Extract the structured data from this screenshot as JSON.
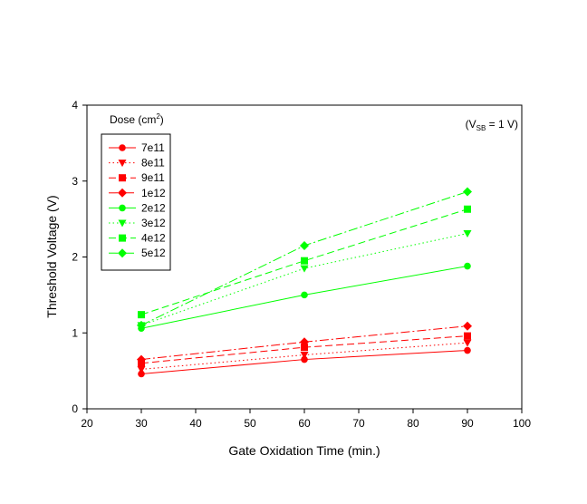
{
  "chart_data": {
    "type": "line",
    "xlabel": "Gate Oxidation Time (min.)",
    "ylabel": "Threshold Voltage (V)",
    "xlim": [
      20,
      100
    ],
    "ylim": [
      0,
      4
    ],
    "xticks": [
      20,
      30,
      40,
      50,
      60,
      70,
      80,
      90,
      100
    ],
    "yticks": [
      0,
      1,
      2,
      3,
      4
    ],
    "grid": false,
    "legend": {
      "title": "Dose (cm",
      "title_sup": "2",
      "title_end": ")",
      "placement": "top-left"
    },
    "annotation": {
      "prefix": "(V",
      "sub": "SB",
      "suffix": " = 1 V)"
    },
    "x": [
      30,
      60,
      90
    ],
    "series": [
      {
        "name": "7e11",
        "values": [
          0.46,
          0.65,
          0.77
        ],
        "color": "#ff0000",
        "marker": "circle",
        "dash": "solid"
      },
      {
        "name": "8e11",
        "values": [
          0.52,
          0.71,
          0.87
        ],
        "color": "#ff0000",
        "marker": "triangle-down",
        "dash": "dotted"
      },
      {
        "name": "9e11",
        "values": [
          0.6,
          0.81,
          0.96
        ],
        "color": "#ff0000",
        "marker": "square",
        "dash": "dashed"
      },
      {
        "name": "1e12",
        "values": [
          0.65,
          0.88,
          1.09
        ],
        "color": "#ff0000",
        "marker": "diamond",
        "dash": "dashdot"
      },
      {
        "name": "2e12",
        "values": [
          1.06,
          1.5,
          1.88
        ],
        "color": "#00ff00",
        "marker": "circle",
        "dash": "solid"
      },
      {
        "name": "3e12",
        "values": [
          1.1,
          1.85,
          2.31
        ],
        "color": "#00ff00",
        "marker": "triangle-down",
        "dash": "dotted"
      },
      {
        "name": "4e12",
        "values": [
          1.24,
          1.95,
          2.63
        ],
        "color": "#00ff00",
        "marker": "square",
        "dash": "dashed"
      },
      {
        "name": "5e12",
        "values": [
          1.1,
          2.15,
          2.86
        ],
        "color": "#00ff00",
        "marker": "diamond",
        "dash": "dashdot"
      }
    ]
  }
}
